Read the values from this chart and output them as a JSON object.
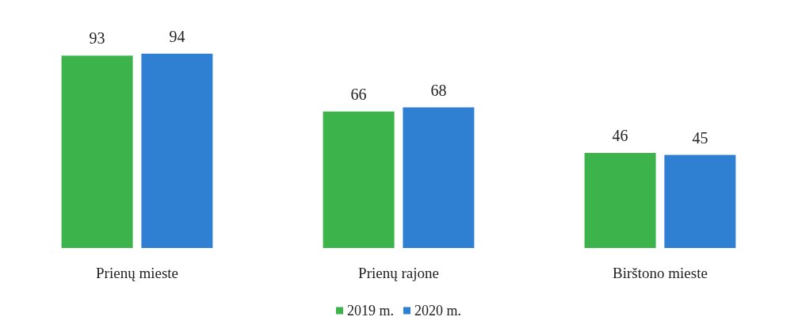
{
  "chart_data": {
    "type": "bar",
    "categories": [
      "Prienų mieste",
      "Prienų rajone",
      "Birštono mieste"
    ],
    "series": [
      {
        "name": "2019 m.",
        "color": "#3cb44b",
        "values": [
          93,
          66,
          46
        ]
      },
      {
        "name": "2020 m.",
        "color": "#2f80d2",
        "values": [
          94,
          68,
          45
        ]
      }
    ],
    "data_labels": true,
    "legend": "bottom"
  }
}
